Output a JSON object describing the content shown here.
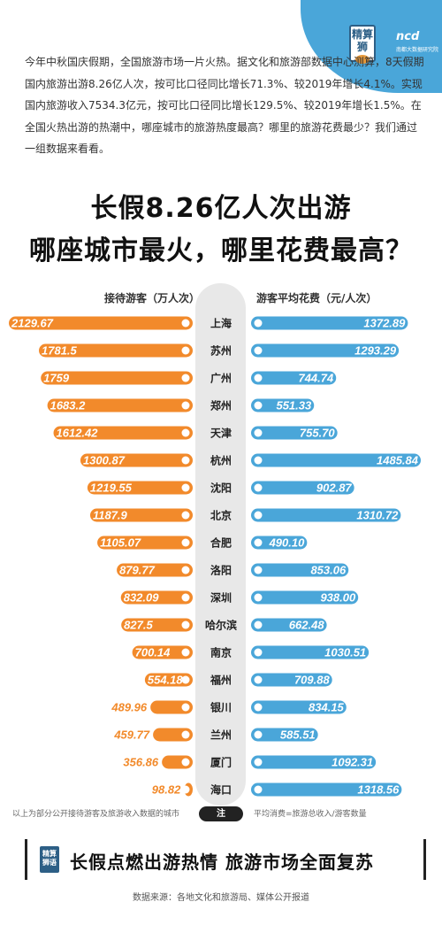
{
  "header": {
    "logo1_text": "精算狮",
    "logo2_text": "ncd",
    "logo2_sub": "南都大数据研究院"
  },
  "intro": "今年中秋国庆假期，全国旅游市场一片火热。据文化和旅游部数据中心测算，8天假期国内旅游出游8.26亿人次，按可比口径同比增长71.3%、较2019年增长4.1%。实现国内旅游收入7534.3亿元，按可比口径同比增长129.5%、较2019年增长1.5%。在全国火热出游的热潮中，哪座城市的旅游热度最高？哪里的旅游花费最少？我们通过一组数据来看看。",
  "title_line1": "长假8.26亿人次出游",
  "title_line2": "哪座城市最火，哪里花费最高？",
  "colors": {
    "orange": "#f28a2b",
    "blue": "#4aa6d9",
    "pill": "#e8e8e8"
  },
  "chart_data": {
    "type": "bar",
    "layout": "butterfly",
    "left_label": "接待游客（万人次）",
    "right_label": "游客平均花费（元/人次）",
    "categories": [
      "上海",
      "苏州",
      "广州",
      "郑州",
      "天津",
      "杭州",
      "沈阳",
      "北京",
      "合肥",
      "洛阳",
      "深圳",
      "哈尔滨",
      "南京",
      "福州",
      "银川",
      "兰州",
      "厦门",
      "海口"
    ],
    "series": [
      {
        "name": "接待游客（万人次）",
        "values": [
          2129.67,
          1781.5,
          1759,
          1683.2,
          1612.42,
          1300.87,
          1219.55,
          1187.9,
          1105.07,
          879.77,
          832.09,
          827.5,
          700.14,
          554.18,
          489.96,
          459.77,
          356.86,
          98.82
        ],
        "labels": [
          "2129.67",
          "1781.5",
          "1759",
          "1683.2",
          "1612.42",
          "1300.87",
          "1219.55",
          "1187.9",
          "1105.07",
          "879.77",
          "832.09",
          "827.5",
          "700.14",
          "554.18",
          "489.96",
          "459.77",
          "356.86",
          "98.82"
        ]
      },
      {
        "name": "游客平均花费（元/人次）",
        "values": [
          1372.89,
          1293.29,
          744.74,
          551.33,
          755.7,
          1485.84,
          902.87,
          1310.72,
          490.1,
          853.06,
          938.0,
          662.48,
          1030.51,
          709.88,
          834.15,
          585.51,
          1092.31,
          1318.56
        ],
        "labels": [
          "1372.89",
          "1293.29",
          "744.74",
          "551.33",
          "755.70",
          "1485.84",
          "902.87",
          "1310.72",
          "490.10",
          "853.06",
          "938.00",
          "662.48",
          "1030.51",
          "709.88",
          "834.15",
          "585.51",
          "1092.31",
          "1318.56"
        ]
      }
    ]
  },
  "notes": {
    "left": "以上为部分公开接待游客及旅游收入数据的城市",
    "pill": "注",
    "right": "平均消费=旅游总收入/游客数量"
  },
  "banner": {
    "logo_text": "精算狮语",
    "text": "长假点燃出游热情  旅游市场全面复苏"
  },
  "source": "数据来源：各地文化和旅游局、媒体公开报道"
}
